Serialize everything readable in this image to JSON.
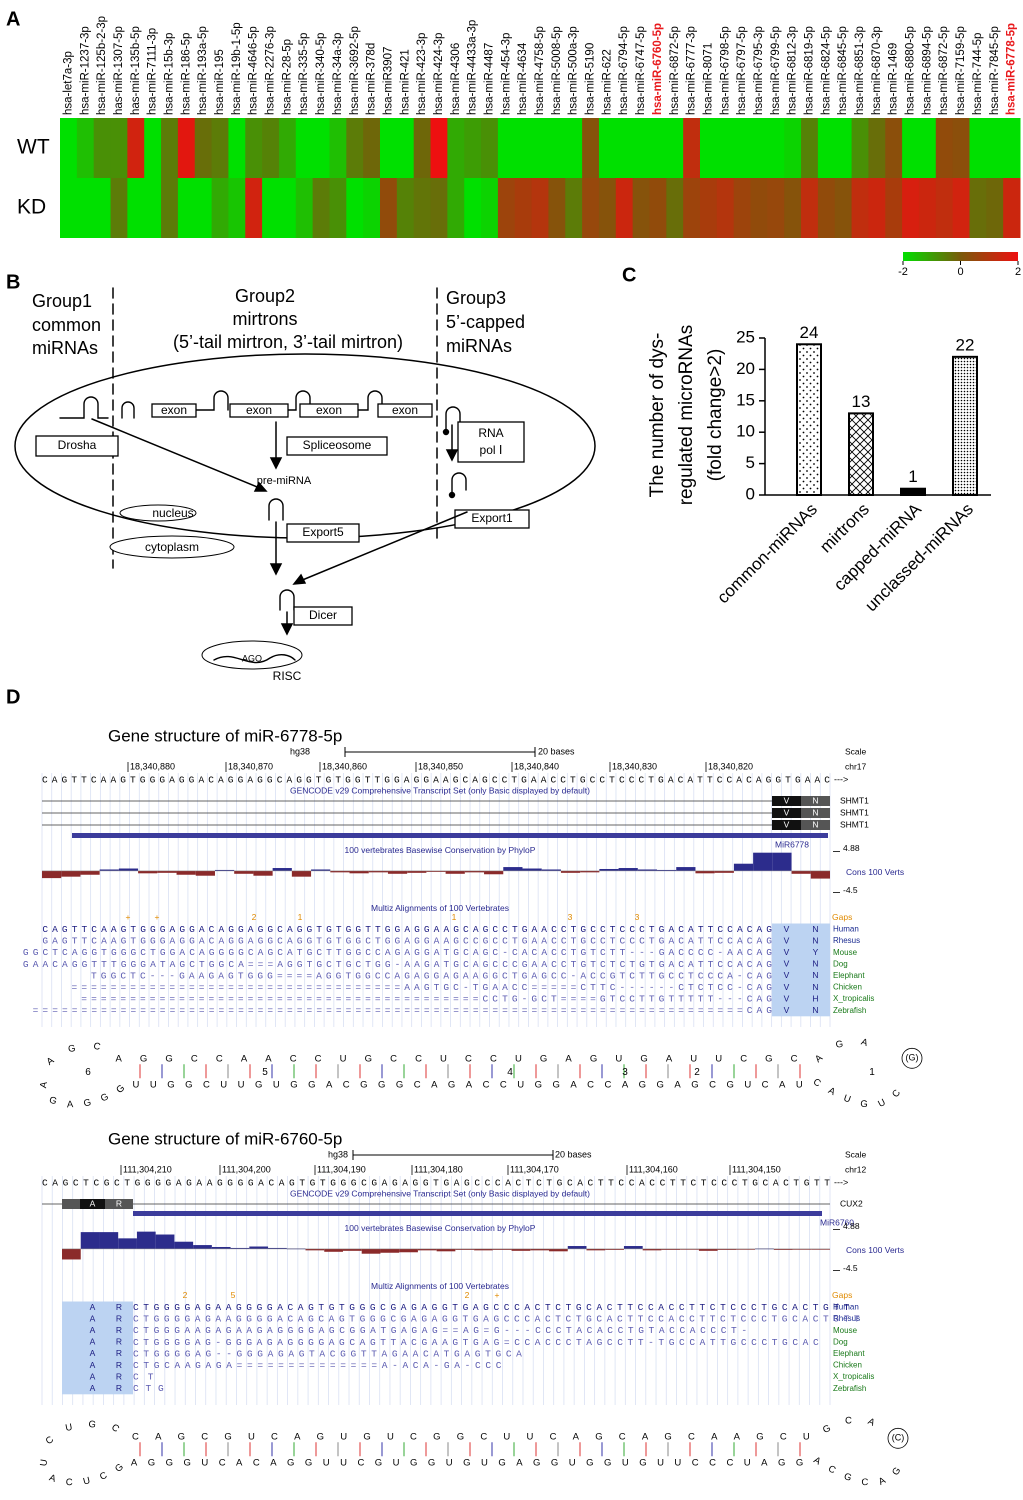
{
  "panel_labels": [
    "A",
    "B",
    "C",
    "D"
  ],
  "chart_data": [
    {
      "type": "heatmap",
      "columns": [
        "hsa-let7a-3p",
        "hsa-miR-1237-3p",
        "hsa-miR-125b-2-3p",
        "has-miR-1307-5p",
        "has-miR-135b-5p",
        "hsa-miR-7111-3p",
        "hsa-miR-15b-3p",
        "hsa-miR-186-5p",
        "hsa-miR-193a-5p",
        "hsa-miR-195",
        "hsa-miR-19b-1-5p",
        "hsa-miR-4646-5p",
        "hsa-miR-2276-3p",
        "hsa-miR-28-5p",
        "hsa-miR-335-5p",
        "hsa-miR-340-5p",
        "hsa-miR-34a-3p",
        "hsa-miR-3692-5p",
        "hsa-miR-378d",
        "hsa-miR3907",
        "hsa-miR-421",
        "hsa-miR-423-3p",
        "hsa-miR-424-3p",
        "hsa-miR-4306",
        "hsa-miR-4433a-3p",
        "hsa-miR-4487",
        "hsa-miR-454-3p",
        "hsa-miR-4634",
        "hsa-miR-4758-5p",
        "hsa-miR-5008-5p",
        "hsa-miR-500a-3p",
        "hsa-miR-5190",
        "hsa-miR-622",
        "hsa-miR-6794-5p",
        "hsa-miR-6747-5p",
        "hsa-miR-6760-5p",
        "hsa-miR-6872-5p",
        "hsa-miR-6777-3p",
        "hsa-miR-8071",
        "hsa-miR-6798-5p",
        "hsa-miR-6797-5p",
        "hsa-miR-6795-3p",
        "hsa-miR-6799-5p",
        "hsa-miR-6812-3p",
        "hsa-miR-6819-5p",
        "hsa-miR-6824-5p",
        "hsa-miR-6845-5p",
        "hsa-miR-6851-3p",
        "hsa-miR-6870-3p",
        "hsa-miR-1469",
        "hsa-miR-6880-5p",
        "hsa-miR-6894-5p",
        "hsa-miR-6872-5p",
        "hsa-miR-7159-5p",
        "hsa-miR-744-5p",
        "hsa-miR-7845-5p",
        "hsa-miR-6778-5p"
      ],
      "rows": [
        "WT",
        "KD"
      ],
      "values": [
        [
          -2,
          -1.5,
          -0.8,
          -0.8,
          1.5,
          -2,
          -0.5,
          1.8,
          -0.3,
          -0.5,
          -2,
          -0.8,
          -0.6,
          -1.2,
          -2,
          -2,
          -1.5,
          -0.5,
          -0.2,
          -2,
          -2,
          -0.2,
          2,
          -1.2,
          -1,
          -0.8,
          -2,
          -2,
          -2,
          -2,
          -2,
          0.2,
          -2,
          -2,
          -2,
          -2,
          -2,
          1.2,
          -2,
          -2,
          -2,
          -2,
          -2,
          -1.8,
          -0.6,
          -2,
          -2,
          -0.8,
          -0.3,
          0.3,
          -2,
          -2,
          0.4,
          0.3,
          -2,
          -2,
          -2
        ],
        [
          -2,
          -2,
          -2,
          -0.5,
          -2,
          -2,
          -0.5,
          -2,
          -2,
          -1.2,
          -1.6,
          1.5,
          -2,
          -2,
          -1.5,
          -0.5,
          -0.8,
          -2,
          -1.8,
          0.4,
          -0.6,
          -0.4,
          -0.3,
          -1.2,
          -2,
          -1.8,
          0.6,
          0.8,
          1,
          0.2,
          -0.5,
          0.5,
          0.2,
          1.4,
          0.2,
          0.4,
          -0.3,
          0.6,
          0.8,
          1,
          0.6,
          0.4,
          0.5,
          0.2,
          1.2,
          0.4,
          0.2,
          1.2,
          1.4,
          0.8,
          1.6,
          1.4,
          1.2,
          1.5,
          -0.3,
          -0.2,
          1.4
        ]
      ],
      "clim": [
        -2,
        2
      ],
      "colorbar_ticks": [
        -2,
        0,
        2
      ],
      "colors": [
        "#00e000",
        "#7a5a0a",
        "#ee1010"
      ],
      "highlighted": [
        35,
        56
      ],
      "highlight_color": "#e8191c"
    },
    {
      "type": "bar",
      "ylabel": [
        "The number of dys-",
        "regulated microRNAs",
        "(fold change>2)"
      ],
      "categories": [
        "common-miRNAs",
        "mirtrons",
        "capped-miRNA",
        "unclassed-miRNAs"
      ],
      "values": [
        24,
        13,
        1,
        22
      ],
      "ylim": [
        0,
        25
      ],
      "yticks": [
        0,
        5,
        10,
        15,
        20,
        25
      ],
      "color": "#000000",
      "patterns": [
        "dots",
        "crosshatch",
        "solid",
        "dense-dots"
      ]
    }
  ],
  "diagram": {
    "group1": [
      "Group1",
      "common",
      "miRNAs"
    ],
    "group2": [
      "Group2",
      "mirtrons",
      "(5’-tail mirtron, 3’-tail mirtron)"
    ],
    "group3": [
      "Group3",
      "5’-capped",
      "miRNAs"
    ],
    "exons": [
      "exon",
      "exon",
      "exon",
      "exon"
    ],
    "drosha": "Drosha",
    "spliceosome": "Spliceosome",
    "rna_pol": [
      "RNA",
      "pol Ⅰ"
    ],
    "pre_mirna": "pre-miRNA",
    "nucleus": "nucleus",
    "cytoplasm": "cytoplasm",
    "export5": "Export5",
    "export1": "Export1",
    "dicer": "Dicer",
    "ago": "AGO",
    "risc": "RISC"
  },
  "browsers": [
    {
      "title": "Gene structure of miR-6778-5p",
      "assembly": "hg38",
      "scale_label": "20 bases",
      "scale_title": "Scale",
      "chrom": "chr17",
      "coords": [
        "18,340,880",
        "18,340,870",
        "18,340,860",
        "18,340,850",
        "18,340,840",
        "18,340,830",
        "18,340,820"
      ],
      "sequence": "CAGTTCAAGTGGGAGGACAGGAGGCAGGTGTGGTTGGAGGAAGCAGCCTGAACCTGCCTCCCTGACATTCCACAGGTGAAC",
      "strand": "--->",
      "gencode": "GENCODE v29 Comprehensive Transcript Set (only Basic displayed by default)",
      "transcripts": [
        "SHMT1",
        "SHMT1",
        "SHMT1"
      ],
      "exon_codes": [
        "V",
        "N"
      ],
      "mirna": "MiR6778",
      "phylop_title": "100 vertebrates Basewise Conservation by PhyloP",
      "phylop_range": [
        -4.5,
        4.88
      ],
      "phylop": [
        -1.5,
        -1.2,
        -0.8,
        0.3,
        0.5,
        -0.5,
        -0.4,
        -0.8,
        -1,
        0.2,
        -0.6,
        -1,
        0.6,
        -1.2,
        0.3,
        -0.3,
        -0.5,
        -0.3,
        -0.6,
        -0.4,
        -0.2,
        -0.6,
        -0.3,
        -0.7,
        0.8,
        0.5,
        0.3,
        -0.4,
        -0.3,
        0.4,
        0.6,
        0.3,
        0.2,
        0.8,
        -0.5,
        -0.4,
        1.5,
        3.8,
        3.8,
        -0.6,
        -1.6
      ],
      "cons_label": "Cons 100 Verts",
      "multiz_title": "Multiz Alignments of 100 Vertebrates",
      "gaps_label": "Gaps",
      "gap_marks": [
        "+",
        "+",
        "2",
        "1",
        "1",
        "3",
        "3"
      ],
      "species": [
        {
          "name": "Human",
          "seq": "CAGTTCAAGTGGGAGGACAGGAGGCAGGTGTGGTTGGAGGAAGCAGCCTGAACCTGCCTCCCTGACATTCCACAG",
          "codes": [
            "V",
            "N"
          ]
        },
        {
          "name": "Rhesus",
          "seq": "GAGTTCAAGTGGGAGGACAGGAGGCAGGTGTGGCTGGAGGAAGCCGCCTGAACCTGCCTCCCTGACATTCCACAG",
          "codes": [
            "V",
            "N"
          ]
        },
        {
          "name": "Mouse",
          "seq": "GGCTCAGGTGGGCTGGACAGGGGCAGCATGCTTGGCCAGAGGATGCAGC-CACACCTGTCTT---GACCCC-AACAG",
          "codes": [
            "V",
            "Y"
          ]
        },
        {
          "name": "Dog",
          "seq": "GAACAGGTTTGGGATAGCTGGCA===AGGTGCTGCTGG-AAGATGCAGCCCGAACCTGTCTCTGTGACATTCCACAG",
          "codes": [
            "V",
            "N"
          ]
        },
        {
          "name": "Elephant",
          "seq": "TGGCTC---GAAGAGTGGG====AGGTGGCCAGAGGAGAAGGCTGAGCC-ACCGTCTTGCCTCCCA-CAG",
          "codes": [
            "V",
            "N"
          ]
        },
        {
          "name": "Chicken",
          "seq": "==================================AAGTGC-TGAACC=====CTTC------CTCTCC-CAG",
          "codes": [
            "V",
            "N"
          ]
        },
        {
          "name": "X_tropicalis",
          "seq": "=========================================CCTG-GCT====GTCCTTGTTTTT---CAG",
          "codes": [
            "V",
            "H"
          ]
        },
        {
          "name": "Zebrafish",
          "seq": "=========================================================================CAG",
          "codes": [
            "V",
            "N"
          ]
        }
      ],
      "hairpin": {
        "top": "AAGCAGGCCAACCUGCCUCCUGAGUGAUUCGCAGAG",
        "bottom": "GAGGGUUGGCUUGUGGACGGGCAGACCUGGACCAGGAGCGUCAUCAUGUCA",
        "loops": [
          "6",
          "5",
          "4",
          "3",
          "2",
          "1"
        ],
        "terminal": "(G)"
      }
    },
    {
      "title": "Gene structure of miR-6760-5p",
      "assembly": "hg38",
      "scale_label": "20 bases",
      "scale_title": "Scale",
      "chrom": "chr12",
      "coords": [
        "111,304,210",
        "111,304,200",
        "111,304,190",
        "111,304,180",
        "111,304,170",
        "111,304,160",
        "111,304,150"
      ],
      "sequence": "CAGCTCGCTGGGGAGAAGGGGACAGTGTGGGCGAGAGGTGAGCCCACTCTGCACTTCCACCTTCTCCCTGCACTGTT",
      "strand": "--->",
      "gencode": "GENCODE v29 Comprehensive Transcript Set (only Basic displayed by default)",
      "transcripts": [
        "CUX2"
      ],
      "exon_codes": [
        "A",
        "R"
      ],
      "mirna": "MiR6760",
      "phylop_title": "100 vertebrates Basewise Conservation by PhyloP",
      "phylop_range": [
        -4.5,
        4.88
      ],
      "phylop": [
        -2.2,
        3.5,
        3.5,
        2.2,
        3.6,
        3,
        1.5,
        0.8,
        0.4,
        0.2,
        0.5,
        0.2,
        0.1,
        -0.3,
        -0.6,
        -0.4,
        -1,
        -0.8,
        -0.7,
        -0.3,
        -0.5,
        -0.2,
        -0.3,
        -0.2,
        -0.4,
        -0.3,
        -0.5,
        0.6,
        -0.3,
        -0.2,
        0.6,
        -0.3,
        -0.2,
        -0.1,
        -0.4,
        -0.2,
        -0.1,
        0.1,
        -0.2,
        -0.1,
        -0.1
      ],
      "cons_label": "Cons 100 Verts",
      "multiz_title": "Multiz Alignments of 100 Vertebrates",
      "gaps_label": "Gaps",
      "gap_marks": [
        "2",
        "5",
        "2",
        "+"
      ],
      "species": [
        {
          "name": "Human",
          "seq": "CTGGGGAGAAGGGGACAGTGTGGGCGAGAGGTGAGCCCACTCTGCACTTCCACCTTCTCCCTGCACTGTT",
          "codes": [
            "A",
            "R"
          ]
        },
        {
          "name": "Rhesus",
          "seq": "CTGGGGAGAAGGGGACAGCAGTGGGCGAGAGGTGAGCCCACTCTGCACTTCCACCTTCTCCCTGCACTGTT",
          "codes": [
            "A",
            "R"
          ]
        },
        {
          "name": "Mouse",
          "seq": "CTGGGAAGAGAAGAGGGGAGCGGATGAGAG==AG=G---CCCTACACCTGTACCACCCT-",
          "codes": [
            "A",
            "R"
          ]
        },
        {
          "name": "Dog",
          "seq": "CTGGGGAG-GGGAGAGGGGAGCAGTTACGAAGTGAG=CCACCCTAGCCTT-TGCCATTGCCCTGCAC",
          "codes": [
            "A",
            "R"
          ]
        },
        {
          "name": "Elephant",
          "seq": "CTGGGGAG--GGGAGAGTACGGTTAGAACATGAGTGCA",
          "codes": [
            "A",
            "R"
          ]
        },
        {
          "name": "Chicken",
          "seq": "CTGCAAGAGA==============A-ACA-GA-CCC",
          "codes": [
            "A",
            "R"
          ]
        },
        {
          "name": "X_tropicalis",
          "seq": "CT",
          "codes": [
            "A",
            "R"
          ]
        },
        {
          "name": "Zebrafish",
          "seq": "CTG",
          "codes": [
            "A",
            "R"
          ]
        }
      ],
      "hairpin": {
        "top": "UCUGCCAGCGUCAGUGUCGGCUUCAGCAGCAAGCUGCAG",
        "bottom": "ACUCGAGGGUCACAGGUUCGUGGUGUGAGGUGGUGUUCCCUAGGACGCAGU",
        "terminal": "(C)"
      }
    }
  ]
}
